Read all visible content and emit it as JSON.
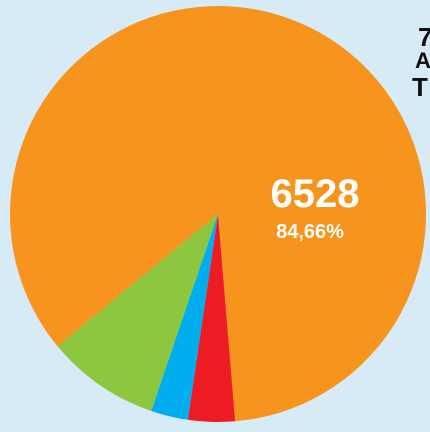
{
  "chart_data": {
    "type": "pie",
    "slices": [
      {
        "value": 6528,
        "percent": "84,66%",
        "color": "#f7941d"
      },
      {
        "value": null,
        "percent": null,
        "color": "#ed1c24"
      },
      {
        "value": null,
        "percent": null,
        "color": "#00aeef"
      },
      {
        "value": null,
        "percent": null,
        "color": "#8dc63f"
      }
    ],
    "slice_fractions": [
      0.8466,
      0.0363,
      0.0289,
      0.0882
    ]
  },
  "cut_off_text": [
    "7",
    "A",
    "T"
  ],
  "colors": {
    "background": "#d6ebf6"
  }
}
